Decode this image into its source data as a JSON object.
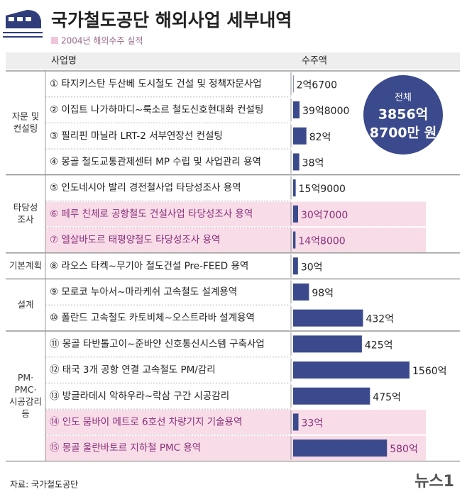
{
  "header": {
    "title": "국가철도공단 해외사업 세부내역",
    "subtitle": "2004년 해외수주 실적"
  },
  "table": {
    "columns": [
      "사업명",
      "수주액"
    ],
    "groups": [
      {
        "label_lines": [
          "자문 및",
          "컨설팅"
        ],
        "rows": [
          {
            "label": "① 타지키스탄 두산베 도시철도 건설 및 정책자문사업",
            "value": 2.67,
            "value_label": "2억6700",
            "highlight": false
          },
          {
            "label": "② 이집트 나가하마디~룩소르 철도신호현대화 컨설팅",
            "value": 39.8,
            "value_label": "39억8000",
            "highlight": false
          },
          {
            "label": "③ 필리핀 마닐라 LRT-2 서부연장선 컨설팅",
            "value": 82,
            "value_label": "82억",
            "highlight": false
          },
          {
            "label": "④ 몽골 철도교통관제센터 MP 수립 및 사업관리 용역",
            "value": 38,
            "value_label": "38억",
            "highlight": false
          }
        ]
      },
      {
        "label_lines": [
          "타당성",
          "조사"
        ],
        "rows": [
          {
            "label": "⑤ 인도네시아 발리 경전철사업 타당성조사 용역",
            "value": 15.9,
            "value_label": "15억9000",
            "highlight": false
          },
          {
            "label": "⑥ 페루 친체로 공항철도 건설사업 타당성조사 용역",
            "value": 30.7,
            "value_label": "30억7000",
            "highlight": true
          },
          {
            "label": "⑦ 엘살바도르 태평양철도 타당성조사 용역",
            "value": 14.8,
            "value_label": "14억8000",
            "highlight": true
          }
        ]
      },
      {
        "label_lines": [
          "기본계획"
        ],
        "rows": [
          {
            "label": "⑧ 라오스 타켁~무기아 철도건설 Pre-FEED 용역",
            "value": 30,
            "value_label": "30억",
            "highlight": false
          }
        ]
      },
      {
        "label_lines": [
          "설계"
        ],
        "rows": [
          {
            "label": "⑨ 모로코 누아서~마라케쉬 고속철도 설계용역",
            "value": 98,
            "value_label": "98억",
            "highlight": false
          },
          {
            "label": "⑩ 폴란드 고속철도 카토비체~오스트라바 설계용역",
            "value": 432,
            "value_label": "432억",
            "highlight": false
          }
        ]
      },
      {
        "label_lines": [
          "PM·",
          "PMC·",
          "시공감리",
          "등"
        ],
        "rows": [
          {
            "label": "⑪ 몽골 타반톨고이~준바얀 신호통신시스템 구축사업",
            "value": 425,
            "value_label": "425억",
            "highlight": false
          },
          {
            "label": "⑫ 태국 3개 공항 연결 고속철도 PM/감리",
            "value": 1560,
            "value_label": "1560억",
            "highlight": false
          },
          {
            "label": "⑬ 방글라데시 악하우라~락삼 구간 시공감리",
            "value": 475,
            "value_label": "475억",
            "highlight": false
          },
          {
            "label": "⑭ 인도 뭄바이 메트로 6호선 차량기지 기술용역",
            "value": 33,
            "value_label": "33억",
            "highlight": true
          },
          {
            "label": "⑮ 몽골 울란바토르 지하철 PMC 용역",
            "value": 580,
            "value_label": "580억",
            "highlight": true
          }
        ]
      }
    ],
    "bar_color": "#3b4a8c"
  },
  "total": {
    "lines": [
      "전체",
      "3856억",
      "8700만 원"
    ]
  },
  "footer": {
    "source": "자료: 국가철도공단",
    "logo": "뉴스1"
  }
}
